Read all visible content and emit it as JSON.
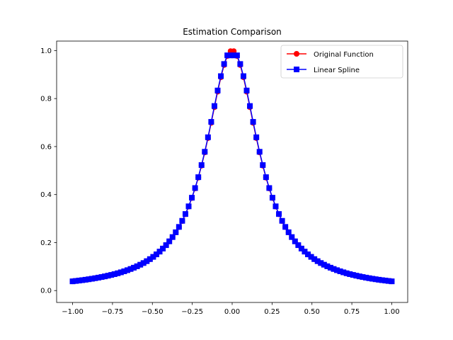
{
  "chart_data": {
    "type": "line",
    "title": "Estimation Comparison",
    "xlabel": "",
    "ylabel": "",
    "xlim": [
      -1.1,
      1.1
    ],
    "ylim": [
      -0.0495,
      1.0395
    ],
    "xticks": [
      -1.0,
      -0.75,
      -0.5,
      -0.25,
      0.0,
      0.25,
      0.5,
      0.75,
      1.0
    ],
    "xtick_labels": [
      "−1.00",
      "−0.75",
      "−0.50",
      "−0.25",
      "0.00",
      "0.25",
      "0.50",
      "0.75",
      "1.00"
    ],
    "yticks": [
      0.0,
      0.2,
      0.4,
      0.6,
      0.8,
      1.0
    ],
    "ytick_labels": [
      "0.0",
      "0.2",
      "0.4",
      "0.6",
      "0.8",
      "1.0"
    ],
    "grid": false,
    "legend_position": "top-right",
    "series": [
      {
        "name": "Original Function",
        "color": "#ff0000",
        "marker": "circle",
        "x": [
          -1.0,
          -0.9798,
          -0.9596,
          -0.9394,
          -0.9192,
          -0.899,
          -0.8788,
          -0.8586,
          -0.8384,
          -0.8182,
          -0.798,
          -0.7778,
          -0.7576,
          -0.7374,
          -0.7172,
          -0.697,
          -0.6768,
          -0.6566,
          -0.6364,
          -0.6162,
          -0.596,
          -0.5758,
          -0.5556,
          -0.5354,
          -0.5152,
          -0.4949,
          -0.4747,
          -0.4545,
          -0.4343,
          -0.4141,
          -0.3939,
          -0.3737,
          -0.3535,
          -0.3333,
          -0.3131,
          -0.2929,
          -0.2727,
          -0.2525,
          -0.2323,
          -0.2121,
          -0.1919,
          -0.1717,
          -0.1515,
          -0.1313,
          -0.1111,
          -0.0909,
          -0.0707,
          -0.0505,
          -0.0303,
          -0.0101,
          0.0101,
          0.0303,
          0.0505,
          0.0707,
          0.0909,
          0.1111,
          0.1313,
          0.1515,
          0.1717,
          0.1919,
          0.2121,
          0.2323,
          0.2525,
          0.2727,
          0.2929,
          0.3131,
          0.3333,
          0.3535,
          0.3737,
          0.3939,
          0.4141,
          0.4343,
          0.4545,
          0.4747,
          0.4949,
          0.5152,
          0.5354,
          0.5556,
          0.5758,
          0.596,
          0.6162,
          0.6364,
          0.6566,
          0.6768,
          0.697,
          0.7172,
          0.7374,
          0.7576,
          0.7778,
          0.798,
          0.8182,
          0.8384,
          0.8586,
          0.8788,
          0.899,
          0.9192,
          0.9394,
          0.9596,
          0.9798,
          1.0
        ],
        "y": [
          0.0385,
          0.04,
          0.0416,
          0.0434,
          0.0452,
          0.0472,
          0.0493,
          0.0515,
          0.0539,
          0.0564,
          0.0591,
          0.062,
          0.0651,
          0.0685,
          0.0721,
          0.076,
          0.0803,
          0.0849,
          0.0899,
          0.0953,
          0.1012,
          0.1077,
          0.1147,
          0.1224,
          0.1309,
          0.1404,
          0.1507,
          0.1623,
          0.175,
          0.1892,
          0.205,
          0.2228,
          0.2425,
          0.2648,
          0.2898,
          0.318,
          0.3499,
          0.3857,
          0.4256,
          0.4706,
          0.5206,
          0.5757,
          0.6353,
          0.699,
          0.7643,
          0.8289,
          0.8889,
          0.9399,
          0.9775,
          0.9974,
          0.9974,
          0.9775,
          0.9399,
          0.8889,
          0.8289,
          0.7643,
          0.699,
          0.6353,
          0.5757,
          0.5206,
          0.4706,
          0.4256,
          0.3857,
          0.3499,
          0.318,
          0.2898,
          0.2648,
          0.2425,
          0.2228,
          0.205,
          0.1892,
          0.175,
          0.1623,
          0.1507,
          0.1404,
          0.1309,
          0.1224,
          0.1147,
          0.1077,
          0.1012,
          0.0953,
          0.0899,
          0.0849,
          0.0803,
          0.076,
          0.0721,
          0.0685,
          0.0651,
          0.062,
          0.0591,
          0.0564,
          0.0539,
          0.0515,
          0.0493,
          0.0472,
          0.0452,
          0.0434,
          0.0416,
          0.04,
          0.0385
        ]
      },
      {
        "name": "Linear Spline",
        "color": "#0000ff",
        "marker": "square",
        "x": [
          -1.0,
          -0.9798,
          -0.9596,
          -0.9394,
          -0.9192,
          -0.899,
          -0.8788,
          -0.8586,
          -0.8384,
          -0.8182,
          -0.798,
          -0.7778,
          -0.7576,
          -0.7374,
          -0.7172,
          -0.697,
          -0.6768,
          -0.6566,
          -0.6364,
          -0.6162,
          -0.596,
          -0.5758,
          -0.5556,
          -0.5354,
          -0.5152,
          -0.4949,
          -0.4747,
          -0.4545,
          -0.4343,
          -0.4141,
          -0.3939,
          -0.3737,
          -0.3535,
          -0.3333,
          -0.3131,
          -0.2929,
          -0.2727,
          -0.2525,
          -0.2323,
          -0.2121,
          -0.1919,
          -0.1717,
          -0.1515,
          -0.1313,
          -0.1111,
          -0.0909,
          -0.0707,
          -0.0505,
          -0.0303,
          -0.0101,
          0.0101,
          0.0303,
          0.0505,
          0.0707,
          0.0909,
          0.1111,
          0.1313,
          0.1515,
          0.1717,
          0.1919,
          0.2121,
          0.2323,
          0.2525,
          0.2727,
          0.2929,
          0.3131,
          0.3333,
          0.3535,
          0.3737,
          0.3939,
          0.4141,
          0.4343,
          0.4545,
          0.4747,
          0.4949,
          0.5152,
          0.5354,
          0.5556,
          0.5758,
          0.596,
          0.6162,
          0.6364,
          0.6566,
          0.6768,
          0.697,
          0.7172,
          0.7374,
          0.7576,
          0.7778,
          0.798,
          0.8182,
          0.8384,
          0.8586,
          0.8788,
          0.899,
          0.9192,
          0.9394,
          0.9596,
          0.9798,
          1.0
        ],
        "y": [
          0.0385,
          0.0401,
          0.0417,
          0.0434,
          0.0452,
          0.0472,
          0.0493,
          0.0516,
          0.054,
          0.0565,
          0.0592,
          0.0621,
          0.0652,
          0.0685,
          0.0721,
          0.0761,
          0.0803,
          0.085,
          0.09,
          0.0954,
          0.1013,
          0.1078,
          0.1148,
          0.1226,
          0.1312,
          0.1405,
          0.1509,
          0.1624,
          0.1751,
          0.1893,
          0.2052,
          0.223,
          0.243,
          0.2653,
          0.2906,
          0.319,
          0.351,
          0.3869,
          0.4272,
          0.4725,
          0.5229,
          0.5783,
          0.6388,
          0.7029,
          0.769,
          0.8336,
          0.8934,
          0.944,
          0.98,
          0.98,
          0.98,
          0.98,
          0.944,
          0.8934,
          0.8336,
          0.769,
          0.7029,
          0.6388,
          0.5783,
          0.5229,
          0.4725,
          0.4272,
          0.3869,
          0.351,
          0.319,
          0.2906,
          0.2653,
          0.243,
          0.223,
          0.2052,
          0.1893,
          0.1751,
          0.1624,
          0.1509,
          0.1405,
          0.1312,
          0.1226,
          0.1148,
          0.1078,
          0.1013,
          0.0954,
          0.09,
          0.085,
          0.0803,
          0.0761,
          0.0721,
          0.0685,
          0.0652,
          0.0621,
          0.0592,
          0.0565,
          0.054,
          0.0516,
          0.0493,
          0.0472,
          0.0452,
          0.0434,
          0.0417,
          0.0401,
          0.0385
        ]
      }
    ]
  }
}
